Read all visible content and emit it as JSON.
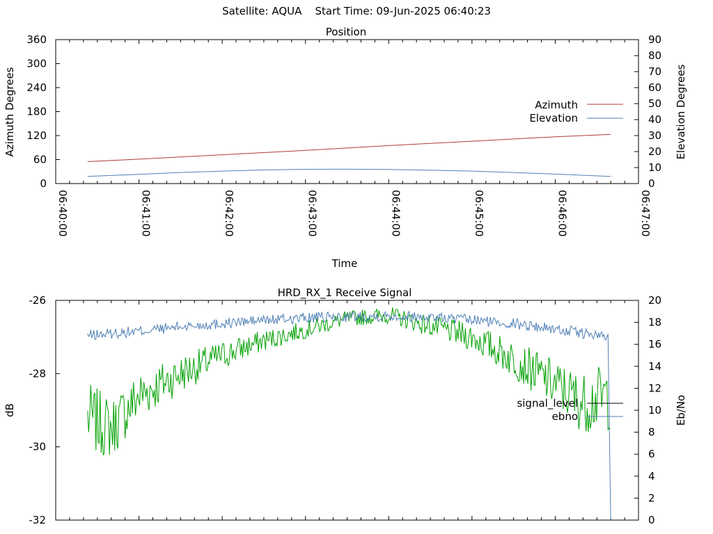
{
  "page": {
    "satellite_label": "Satellite: AQUA",
    "start_label": "Start Time: 09-Jun-2025 06:40:23"
  },
  "chart_data": [
    {
      "type": "line",
      "title": "Position",
      "xlabel": "Time",
      "ylabel": "Azimuth Degrees",
      "y2label": "Elevation Degrees",
      "xlim": [
        "06:40:00",
        "06:47:00"
      ],
      "xticks": [
        "06:40:00",
        "06:41:00",
        "06:42:00",
        "06:43:00",
        "06:44:00",
        "06:45:00",
        "06:46:00",
        "06:47:00"
      ],
      "ylim": [
        0,
        360
      ],
      "yticks": [
        0,
        60,
        120,
        180,
        240,
        300,
        360
      ],
      "y2lim": [
        0,
        90
      ],
      "y2ticks": [
        0,
        10,
        20,
        30,
        40,
        50,
        60,
        70,
        80,
        90
      ],
      "legend_position": "right",
      "series": [
        {
          "name": "Azimuth",
          "axis": "y",
          "color": "#b03a3a",
          "x": [
            "06:40:23",
            "06:41:00",
            "06:42:00",
            "06:43:00",
            "06:44:00",
            "06:45:00",
            "06:46:00",
            "06:46:40"
          ],
          "values": [
            55,
            61,
            72,
            83,
            95,
            106,
            117,
            123
          ]
        },
        {
          "name": "Elevation",
          "axis": "y2",
          "color": "#4f7fb5",
          "x": [
            "06:40:23",
            "06:41:00",
            "06:41:30",
            "06:42:00",
            "06:42:30",
            "06:43:00",
            "06:43:30",
            "06:44:00",
            "06:44:30",
            "06:45:00",
            "06:45:30",
            "06:46:00",
            "06:46:40"
          ],
          "values": [
            4.5,
            5.8,
            6.9,
            7.8,
            8.5,
            8.9,
            9.0,
            8.8,
            8.4,
            7.8,
            6.9,
            5.9,
            4.5
          ]
        }
      ]
    },
    {
      "type": "line",
      "title": "HRD_RX_1 Receive Signal",
      "ylabel": "dB",
      "y2label": "Eb/No",
      "ylim": [
        -32,
        -26
      ],
      "yticks": [
        -32,
        -30,
        -28,
        -26
      ],
      "y2lim": [
        0,
        20
      ],
      "y2ticks": [
        0,
        2,
        4,
        6,
        8,
        10,
        12,
        14,
        16,
        18,
        20
      ],
      "x_range": [
        "06:40:00",
        "06:47:00"
      ],
      "legend_position": "right",
      "series": [
        {
          "name": "signal_level",
          "axis": "y",
          "color": "#00a000",
          "x": [
            "06:40:23",
            "06:40:40",
            "06:41:00",
            "06:41:30",
            "06:42:00",
            "06:42:30",
            "06:43:00",
            "06:43:30",
            "06:44:00",
            "06:44:30",
            "06:45:00",
            "06:45:30",
            "06:46:00",
            "06:46:20",
            "06:46:40"
          ],
          "values": [
            -29.2,
            -29.5,
            -28.6,
            -28.0,
            -27.5,
            -27.1,
            -26.8,
            -26.5,
            -26.4,
            -26.7,
            -27.0,
            -27.6,
            -28.3,
            -28.8,
            -28.6
          ]
        },
        {
          "name": "ebno",
          "axis": "y2",
          "color": "#4f7fb5",
          "x": [
            "06:40:23",
            "06:41:00",
            "06:41:30",
            "06:42:00",
            "06:42:30",
            "06:43:00",
            "06:43:30",
            "06:44:00",
            "06:44:30",
            "06:45:00",
            "06:45:30",
            "06:46:00",
            "06:46:20",
            "06:46:38",
            "06:46:40"
          ],
          "values": [
            16.8,
            17.2,
            17.6,
            17.9,
            18.2,
            18.4,
            18.5,
            18.6,
            18.5,
            18.2,
            17.9,
            17.4,
            17.0,
            16.6,
            0
          ]
        }
      ]
    }
  ]
}
